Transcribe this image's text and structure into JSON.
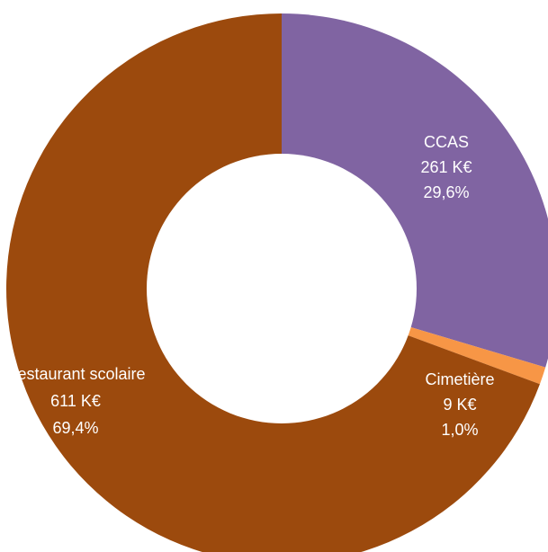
{
  "chart_data": {
    "type": "pie",
    "variant": "donut",
    "title": "",
    "unit": "K€",
    "slices": [
      {
        "label": "CCAS",
        "value": 261,
        "value_text": "261 K€",
        "percent": 29.6,
        "percent_text": "29,6%",
        "color": "#8064A2"
      },
      {
        "label": "Cimetière",
        "value": 9,
        "value_text": "9 K€",
        "percent": 1.0,
        "percent_text": "1,0%",
        "color": "#F79646"
      },
      {
        "label": "Restaurant scolaire",
        "value": 611,
        "value_text": "611 K€",
        "percent": 69.4,
        "percent_text": "69,4%",
        "color": "#9C4A0D"
      }
    ]
  }
}
